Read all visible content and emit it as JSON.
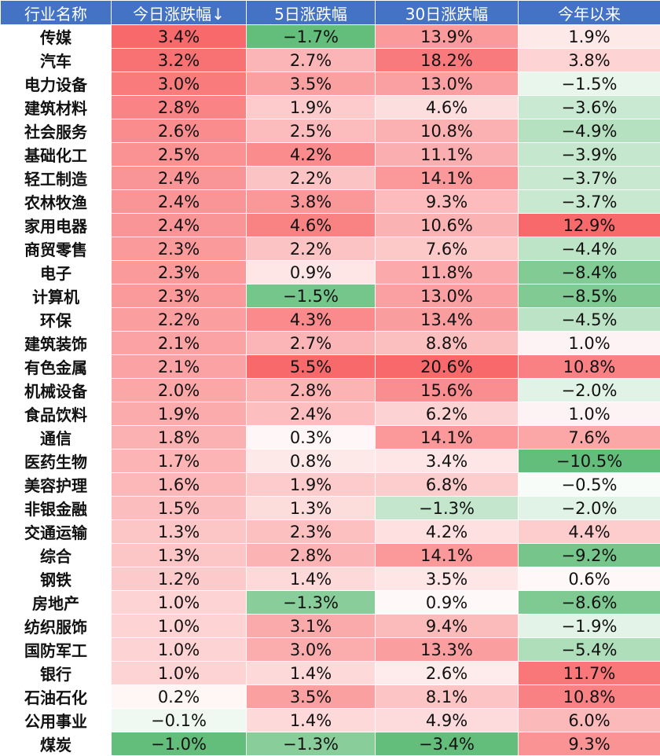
{
  "chart_data": {
    "type": "table",
    "columns": [
      "行业名称",
      "今日涨跌幅↓",
      "5日涨跌幅",
      "30日涨跌幅",
      "今年以来"
    ],
    "rows": [
      [
        "传媒",
        "3.4%",
        "−1.7%",
        "13.9%",
        "1.9%"
      ],
      [
        "汽车",
        "3.2%",
        "2.7%",
        "18.2%",
        "3.8%"
      ],
      [
        "电力设备",
        "3.0%",
        "3.5%",
        "13.0%",
        "−1.5%"
      ],
      [
        "建筑材料",
        "2.8%",
        "1.9%",
        "4.6%",
        "−3.6%"
      ],
      [
        "社会服务",
        "2.6%",
        "2.5%",
        "10.8%",
        "−4.9%"
      ],
      [
        "基础化工",
        "2.5%",
        "4.2%",
        "11.1%",
        "−3.9%"
      ],
      [
        "轻工制造",
        "2.4%",
        "2.2%",
        "14.1%",
        "−3.7%"
      ],
      [
        "农林牧渔",
        "2.4%",
        "3.8%",
        "9.3%",
        "−3.7%"
      ],
      [
        "家用电器",
        "2.4%",
        "4.6%",
        "10.6%",
        "12.9%"
      ],
      [
        "商贸零售",
        "2.3%",
        "2.2%",
        "7.6%",
        "−4.4%"
      ],
      [
        "电子",
        "2.3%",
        "0.9%",
        "11.8%",
        "−8.4%"
      ],
      [
        "计算机",
        "2.3%",
        "−1.5%",
        "13.0%",
        "−8.5%"
      ],
      [
        "环保",
        "2.2%",
        "4.3%",
        "13.4%",
        "−4.5%"
      ],
      [
        "建筑装饰",
        "2.1%",
        "2.7%",
        "8.8%",
        "1.0%"
      ],
      [
        "有色金属",
        "2.1%",
        "5.5%",
        "20.6%",
        "10.8%"
      ],
      [
        "机械设备",
        "2.0%",
        "2.8%",
        "15.6%",
        "−2.0%"
      ],
      [
        "食品饮料",
        "1.9%",
        "2.4%",
        "6.2%",
        "1.0%"
      ],
      [
        "通信",
        "1.8%",
        "0.3%",
        "14.1%",
        "7.6%"
      ],
      [
        "医药生物",
        "1.7%",
        "0.8%",
        "3.4%",
        "−10.5%"
      ],
      [
        "美容护理",
        "1.6%",
        "1.9%",
        "6.8%",
        "−0.5%"
      ],
      [
        "非银金融",
        "1.5%",
        "1.3%",
        "−1.3%",
        "−2.0%"
      ],
      [
        "交通运输",
        "1.3%",
        "2.3%",
        "4.2%",
        "4.4%"
      ],
      [
        "综合",
        "1.3%",
        "2.8%",
        "14.1%",
        "−9.2%"
      ],
      [
        "钢铁",
        "1.2%",
        "1.4%",
        "3.5%",
        "0.6%"
      ],
      [
        "房地产",
        "1.0%",
        "−1.3%",
        "0.9%",
        "−8.6%"
      ],
      [
        "纺织服饰",
        "1.0%",
        "3.1%",
        "9.4%",
        "−1.9%"
      ],
      [
        "国防军工",
        "1.0%",
        "3.0%",
        "13.3%",
        "−5.4%"
      ],
      [
        "银行",
        "1.0%",
        "1.4%",
        "2.6%",
        "11.7%"
      ],
      [
        "石油石化",
        "0.2%",
        "3.5%",
        "8.1%",
        "10.8%"
      ],
      [
        "公用事业",
        "−0.1%",
        "1.4%",
        "4.9%",
        "6.0%"
      ],
      [
        "煤炭",
        "−1.0%",
        "−1.3%",
        "−3.4%",
        "9.3%"
      ]
    ],
    "sort": {
      "column": "今日涨跌幅↓",
      "order": "descending"
    },
    "color_scale": {
      "positive": "#f8696b",
      "neutral": "#ffffff",
      "negative": "#63be7b"
    }
  }
}
